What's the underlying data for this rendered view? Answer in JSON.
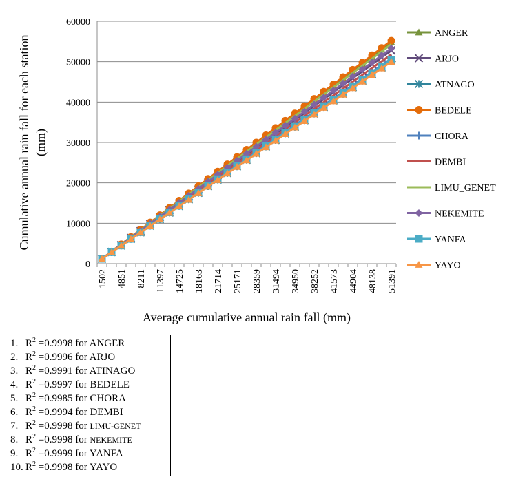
{
  "chart_data": {
    "type": "line",
    "xlabel": "Average cumulative annual rain fall (mm)",
    "ylabel": "Cumulative annual rain fall for each station (mm)",
    "x_tick_labels": [
      "1502",
      "4851",
      "8211",
      "11397",
      "14725",
      "18163",
      "21714",
      "25171",
      "28359",
      "31494",
      "34950",
      "38252",
      "41573",
      "44904",
      "48138",
      "51391"
    ],
    "ylim": [
      0,
      60000
    ],
    "yticks": [
      0,
      10000,
      20000,
      30000,
      40000,
      50000,
      60000
    ],
    "grid": "horizontal",
    "legend_position": "right",
    "points_per_series": 31,
    "series": [
      {
        "name": "ANGER",
        "color": "#77933c",
        "marker": "triangle",
        "end": 54800
      },
      {
        "name": "ARJO",
        "color": "#604a7b",
        "marker": "x",
        "end": 52800
      },
      {
        "name": "ATNAGO",
        "color": "#31859c",
        "marker": "asterisk",
        "end": 50200
      },
      {
        "name": "BEDELE",
        "color": "#e46c0a",
        "marker": "circle",
        "end": 55200
      },
      {
        "name": "CHORA",
        "color": "#4f81bd",
        "marker": "plus",
        "end": 50800
      },
      {
        "name": "DEMBI",
        "color": "#c0504d",
        "marker": "none",
        "end": 51800
      },
      {
        "name": "LIMU_GENET",
        "color": "#9bbb59",
        "marker": "none",
        "end": 54300
      },
      {
        "name": "NEKEMITE",
        "color": "#8064a2",
        "marker": "diamond",
        "end": 53300
      },
      {
        "name": "YANFA",
        "color": "#4bacc6",
        "marker": "square",
        "end": 50500
      },
      {
        "name": "YAYO",
        "color": "#f79646",
        "marker": "triangle",
        "end": 50000
      }
    ]
  },
  "r2_list": [
    {
      "num": "1.",
      "r": "R",
      "sup": "2",
      "value": " =0.9998 for ",
      "station": "ANGER",
      "small": false
    },
    {
      "num": "2.",
      "r": "R",
      "sup": "2",
      "value": " =0.9996 for ",
      "station": "ARJO",
      "small": false
    },
    {
      "num": "3.",
      "r": "R",
      "sup": "2",
      "value": " =0.9991 for ",
      "station": "ATINAGO",
      "small": false
    },
    {
      "num": "4.",
      "r": "R",
      "sup": "2",
      "value": " =0.9997 for ",
      "station": "BEDELE",
      "small": false
    },
    {
      "num": "5.",
      "r": "R",
      "sup": "2",
      "value": " =0.9985 for ",
      "station": "CHORA",
      "small": false
    },
    {
      "num": "6.",
      "r": "R",
      "sup": "2",
      "value": " =0.9994 for ",
      "station": "DEMBI",
      "small": false
    },
    {
      "num": "7.",
      "r": "R",
      "sup": "2",
      "value": " =0.9998 for ",
      "station": "LIMU-GENET",
      "small": true
    },
    {
      "num": "8.",
      "r": "R",
      "sup": "2",
      "value": " =0.9998 for ",
      "station": "NEKEMITE",
      "small": true
    },
    {
      "num": "9.",
      "r": "R",
      "sup": "2",
      "value": " =0.9999 for ",
      "station": "YANFA",
      "small": false
    },
    {
      "num": "10.",
      "r": "R",
      "sup": "2",
      "value": " =0.9998 for ",
      "station": "YAYO",
      "small": false
    }
  ]
}
